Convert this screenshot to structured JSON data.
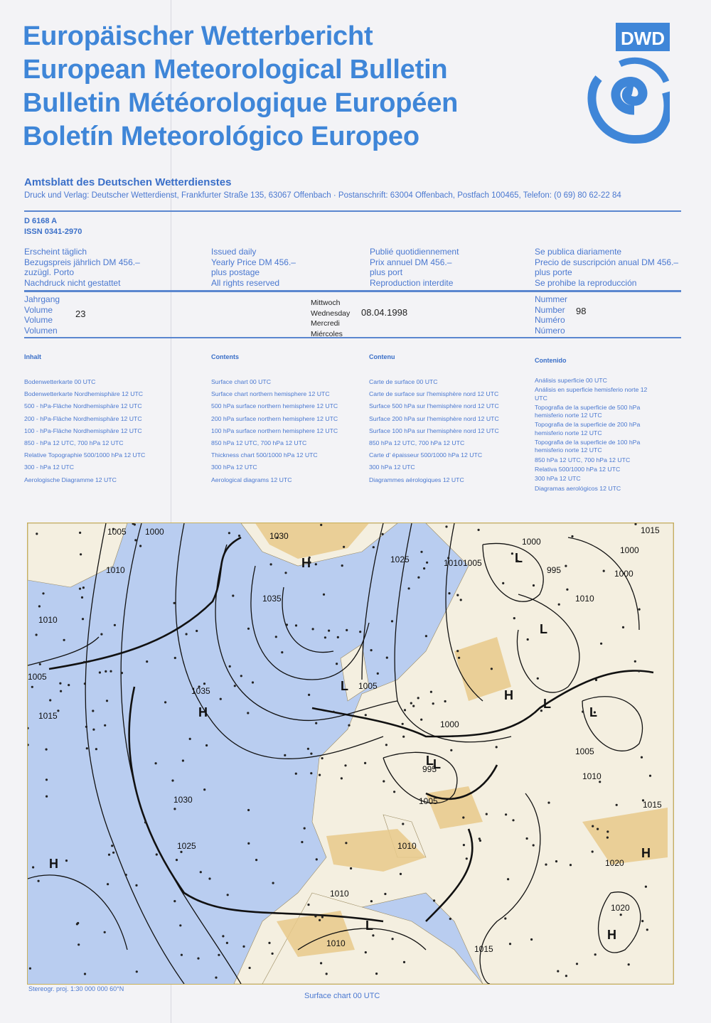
{
  "header": {
    "titles": [
      "Europäischer Wetterbericht",
      "European Meteorological Bulletin",
      "Bulletin Météorologique Européen",
      "Boletín Meteorológico Europeo"
    ],
    "logo_text": "DWD",
    "official_title": "Amtsblatt des Deutschen Wetterdienstes",
    "publisher": "Druck und Verlag: Deutscher Wetterdienst, Frankfurter Straße 135, 63067 Offenbach · Postanschrift: 63004 Offenbach, Postfach 100465, Telefon: (0 69) 80 62-22 84",
    "code": "D 6168 A",
    "issn": "ISSN 0341-2970"
  },
  "subscription": [
    [
      "Erscheint täglich",
      "Bezugspreis jährlich DM 456.–",
      "zuzügl. Porto",
      "Nachdruck nicht gestattet"
    ],
    [
      "Issued daily",
      "Yearly Price DM 456.–",
      "plus postage",
      "All rights reserved"
    ],
    [
      "Publié quotidiennement",
      "Prix annuel DM 456.–",
      "plus port",
      "Reproduction interdite"
    ],
    [
      "Se publica diariamente",
      "Precio de suscripción anual DM 456.–",
      "plus porte",
      "Se prohibe la reproducción"
    ]
  ],
  "issue": {
    "volume_labels": [
      "Jahrgang",
      "Volume",
      "Volume",
      "Volumen"
    ],
    "volume": "23",
    "day_labels": [
      "Mittwoch",
      "Wednesday",
      "Mercredi",
      "Miércoles"
    ],
    "date": "08.04.1998",
    "number_labels": [
      "Nummer",
      "Number",
      "Numéro",
      "Número"
    ],
    "number": "98"
  },
  "contents": [
    {
      "heading": "Inhalt",
      "items": [
        "Bodenwetterkarte 00 UTC",
        "Bodenwetterkarte Nordhemisphäre 12 UTC",
        "500 - hPa-Fläche Nordhemisphäre 12 UTC",
        "200 - hPa-Fläche Nordhemisphäre 12 UTC",
        "100 - hPa-Fläche Nordhemisphäre 12 UTC",
        "850 - hPa 12 UTC, 700 hPa 12 UTC",
        "Relative Topographie 500/1000 hPa 12 UTC",
        "300 - hPa 12 UTC",
        "Aerologische Diagramme 12 UTC"
      ]
    },
    {
      "heading": "Contents",
      "items": [
        "Surface chart 00 UTC",
        "Surface chart northern hemisphere 12 UTC",
        "500 hPa surface northern hemisphere 12 UTC",
        "200 hPa surface northern hemisphere 12 UTC",
        "100 hPa surface northern hemisphere 12 UTC",
        "850 hPa 12 UTC, 700 hPa 12 UTC",
        "Thickness chart 500/1000 hPa 12 UTC",
        "300 hPa 12 UTC",
        "Aerological diagrams 12 UTC"
      ]
    },
    {
      "heading": "Contenu",
      "items": [
        "Carte de surface 00 UTC",
        "Carte de surface sur l'hemisphère nord 12 UTC",
        "Surface 500 hPa sur l'hemisphère nord 12 UTC",
        "Surface 200 hPa sur l'hemisphère nord 12 UTC",
        "Surface 100 hPa sur l'hemisphère nord 12 UTC",
        "850 hPa 12 UTC, 700 hPa 12 UTC",
        "Carte d' épaisseur 500/1000 hPa 12 UTC",
        "300 hPa 12 UTC",
        "Diagrammes aérologiques 12 UTC"
      ]
    },
    {
      "heading": "Contenido",
      "items": [
        "Análisis superficie 00 UTC",
        "Análisis en superficie hemisferio norte 12 UTC",
        "Topografia de la superficie de 500 hPa hemisferio norte 12 UTC",
        "Topografia de la superficie de 200 hPa hemisferio norte 12 UTC",
        "Topografia de la superficie de 100 hPa hemisferio norte 12 UTC",
        "850 hPa 12 UTC, 700 hPa 12 UTC",
        "Relativa 500/1000 hPa 12 UTC",
        "300 hPa 12 UTC",
        "Diagramas aerológicos 12 UTC"
      ]
    }
  ],
  "map": {
    "colors": {
      "sea": "#b9cdf0",
      "land": "#f4efe0",
      "high_land": "#e7c98a",
      "isobar": "#111111"
    },
    "pressure_labels": [
      "1005",
      "1000",
      "1030",
      "1010",
      "1035",
      "1010",
      "1005",
      "1015",
      "1035",
      "1030",
      "1025",
      "1025",
      "1010",
      "1005",
      "1000",
      "995",
      "1000",
      "1010",
      "1015",
      "1000",
      "1005",
      "1000",
      "995",
      "1005",
      "1005",
      "1010",
      "1010",
      "1015",
      "1020",
      "1020",
      "1015",
      "1010",
      "1015",
      "1010"
    ],
    "centers": [
      "H",
      "H",
      "H",
      "L",
      "L",
      "L",
      "L",
      "H",
      "L",
      "L",
      "L",
      "H",
      "H",
      "L"
    ]
  },
  "footer": {
    "projection": "Stereogr. proj. 1:30 000 000    60°N",
    "caption": "Surface chart 00 UTC"
  }
}
